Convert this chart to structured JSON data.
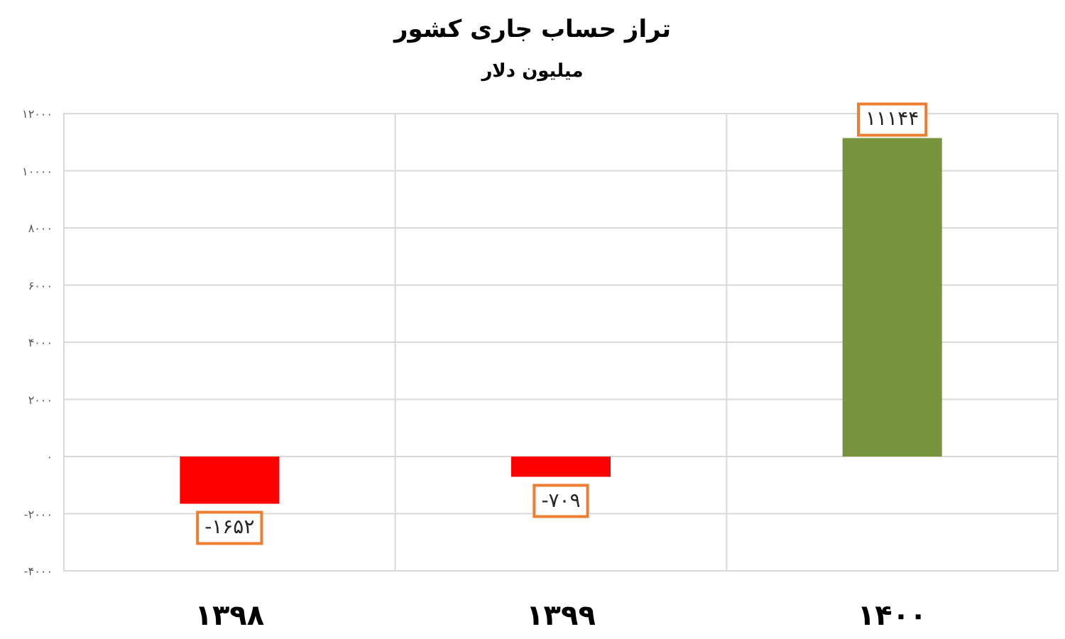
{
  "chart_data": {
    "type": "bar",
    "title": "تراز حساب جاری کشور",
    "subtitle": "میلیون دلار",
    "categories": [
      "۱۳۹۸",
      "۱۳۹۹",
      "۱۴۰۰"
    ],
    "values": [
      -1652,
      -709,
      11144
    ],
    "colors": [
      "#ff0000",
      "#ff0000",
      "#77933c"
    ],
    "value_labels": [
      "-۱۶۵۲",
      "-۷۰۹",
      "۱۱۱۴۴"
    ],
    "ylim": [
      -4000,
      12000
    ],
    "yticks": [
      {
        "value": -4000,
        "label": "-۴۰۰۰"
      },
      {
        "value": -2000,
        "label": "-۲۰۰۰"
      },
      {
        "value": 0,
        "label": "۰"
      },
      {
        "value": 2000,
        "label": "۲۰۰۰"
      },
      {
        "value": 4000,
        "label": "۴۰۰۰"
      },
      {
        "value": 6000,
        "label": "۶۰۰۰"
      },
      {
        "value": 8000,
        "label": "۸۰۰۰"
      },
      {
        "value": 10000,
        "label": "۱۰۰۰۰"
      },
      {
        "value": 12000,
        "label": "۱۲۰۰۰"
      }
    ],
    "grid": true
  }
}
